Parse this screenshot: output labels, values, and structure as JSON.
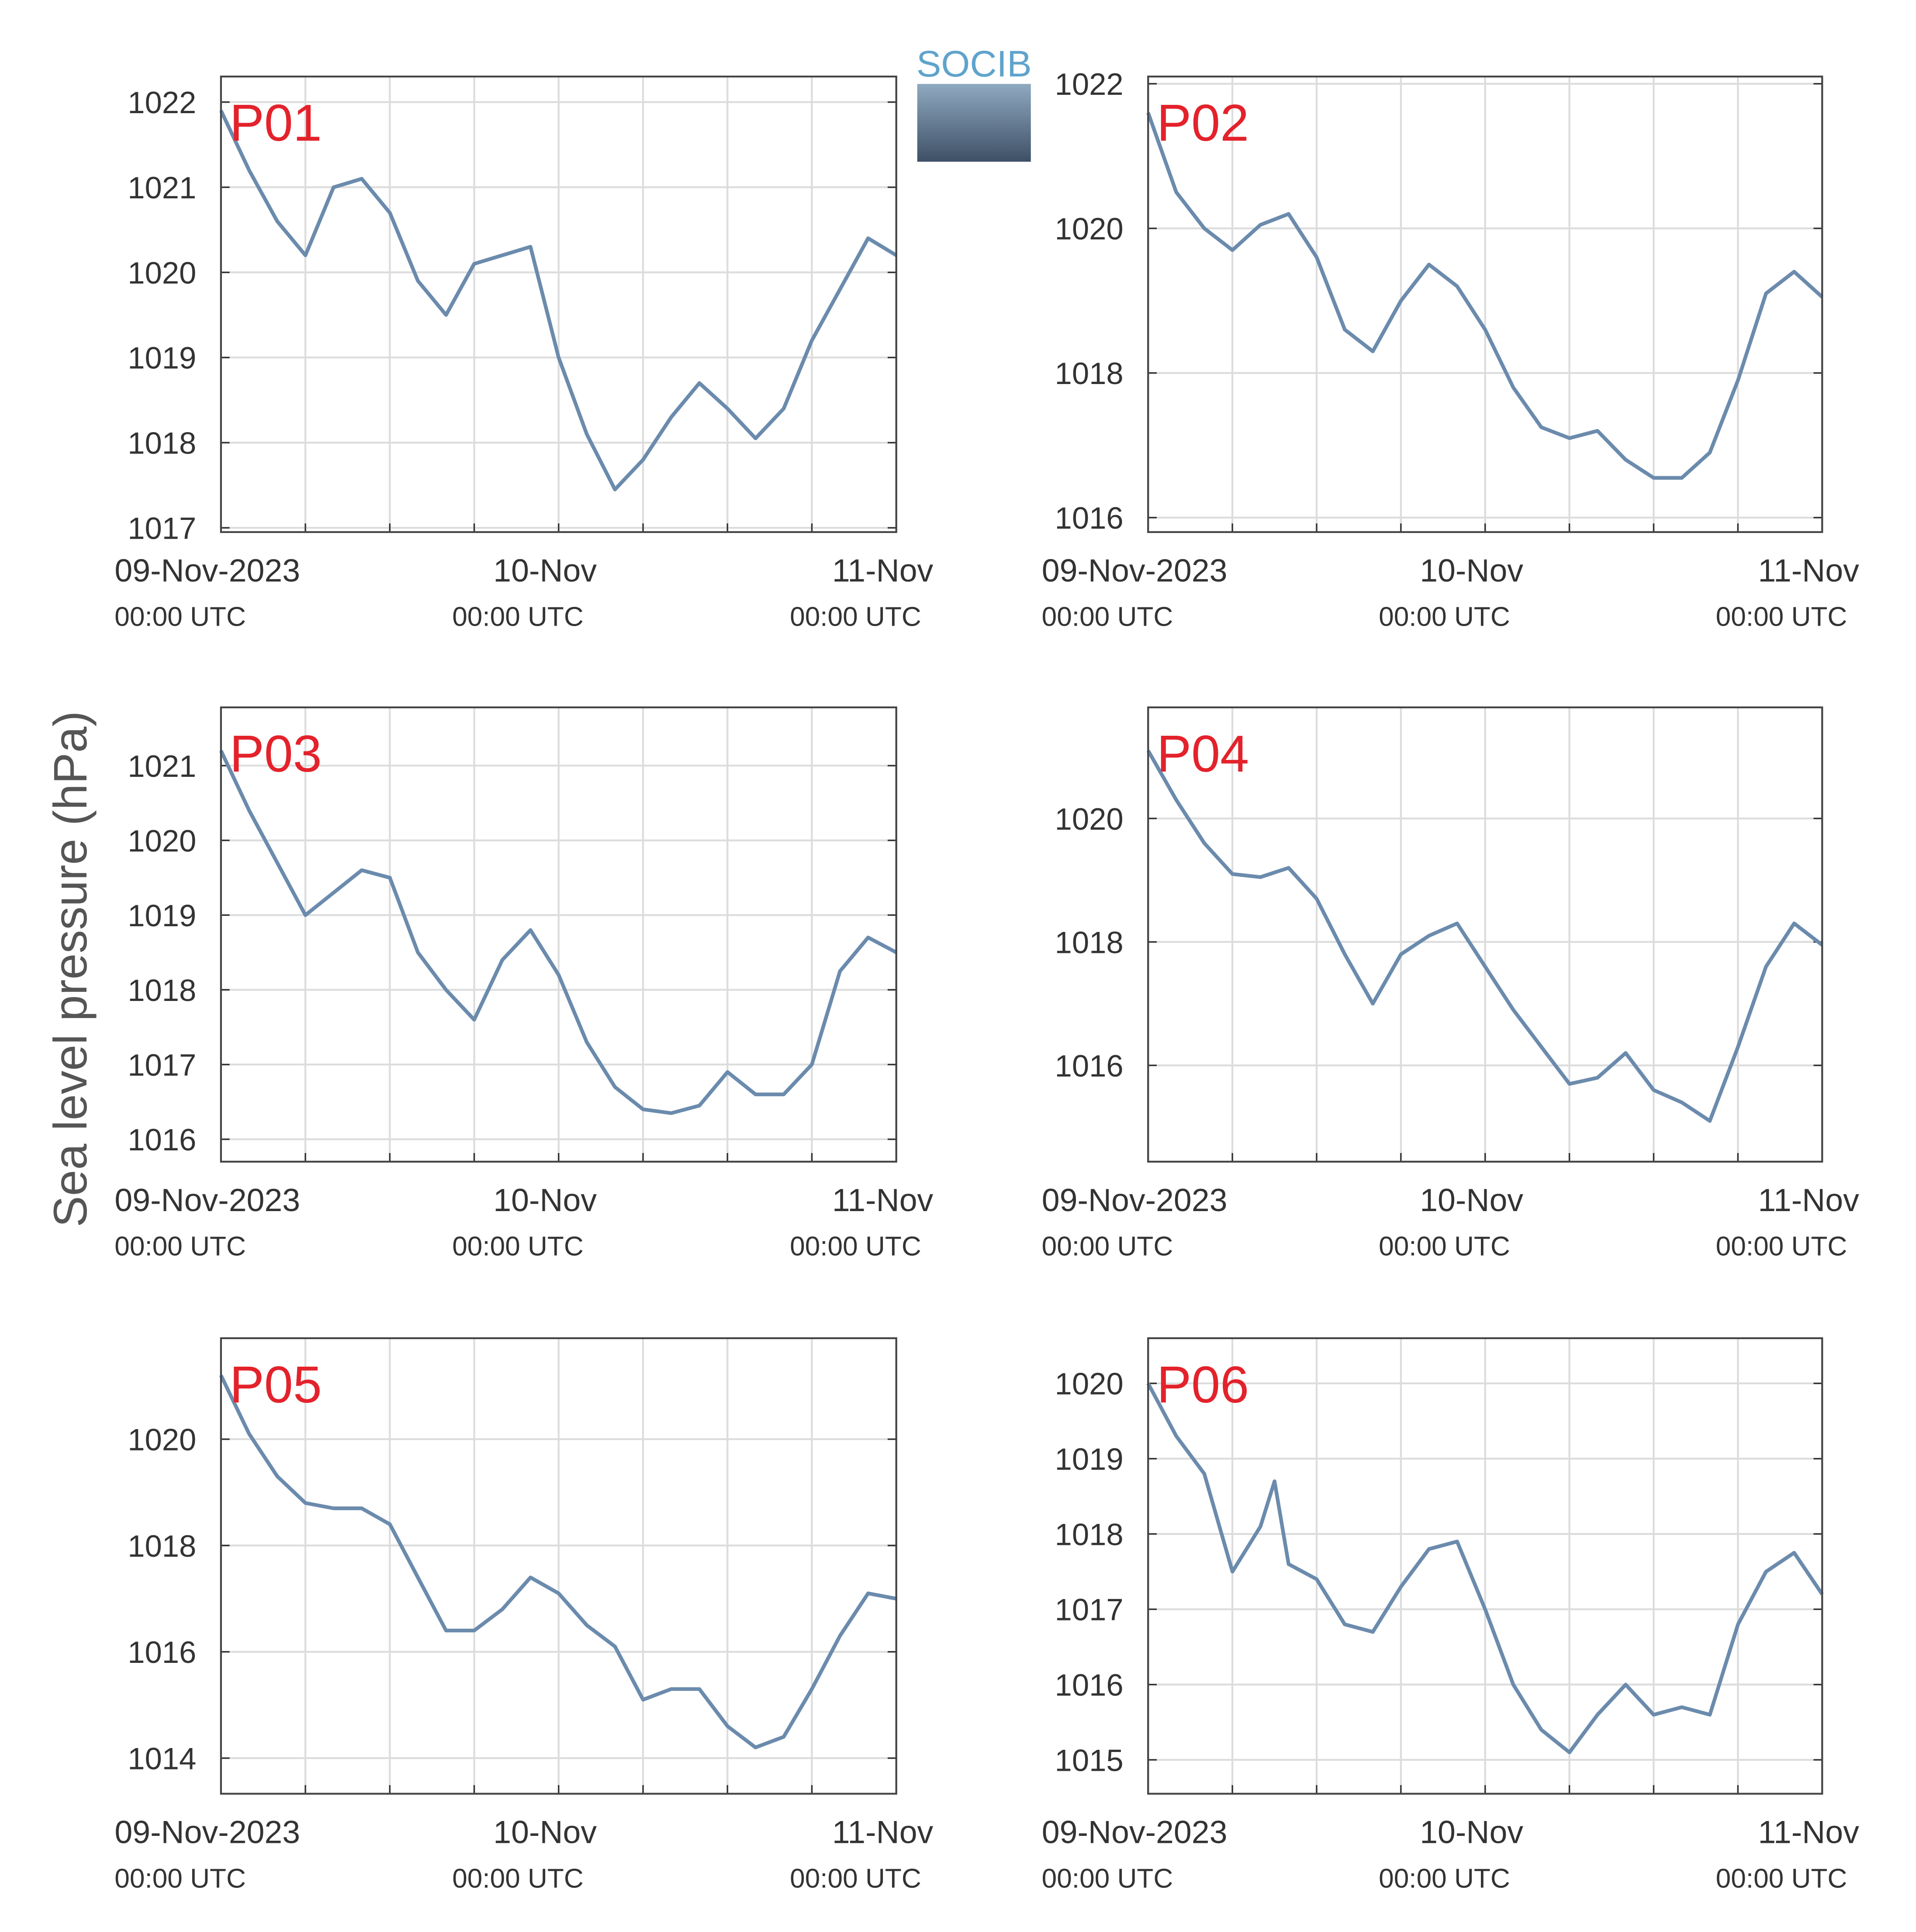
{
  "ylabel": "Sea level pressure (hPa)",
  "logo": "SOCIB",
  "chart_data": [
    {
      "type": "line",
      "title": "P01",
      "color": "#6b8bad",
      "grid": true,
      "x": [
        0,
        2,
        4,
        6,
        8,
        10,
        12,
        14,
        16,
        18,
        20,
        22,
        24,
        26,
        28,
        30,
        32,
        34,
        36,
        38,
        40,
        42,
        44,
        46,
        48
      ],
      "values": [
        1021.9,
        1021.2,
        1020.6,
        1020.2,
        1021.0,
        1021.1,
        1020.7,
        1019.9,
        1019.5,
        1020.1,
        1020.2,
        1020.3,
        1019.0,
        1018.1,
        1017.45,
        1017.8,
        1018.3,
        1018.7,
        1018.4,
        1018.05,
        1018.4,
        1019.2,
        1019.8,
        1020.4,
        1020.2
      ],
      "xlim": [
        0,
        48
      ],
      "xticks": [
        {
          "value": 0,
          "label": "09-Nov-2023"
        },
        {
          "value": 24,
          "label": "10-Nov"
        },
        {
          "value": 48,
          "label": "11-Nov"
        }
      ],
      "xgrid": [
        6,
        12,
        18,
        30,
        36,
        42
      ],
      "xtick_sublabel": "00:00 UTC",
      "ylim": [
        1016.95,
        1022.3
      ],
      "yticks": [
        1017,
        1018,
        1019,
        1020,
        1021,
        1022
      ]
    },
    {
      "type": "line",
      "title": "P02",
      "color": "#6b8bad",
      "grid": true,
      "x": [
        0,
        2,
        4,
        6,
        8,
        10,
        12,
        14,
        16,
        18,
        20,
        22,
        24,
        26,
        28,
        30,
        32,
        34,
        36,
        38,
        40,
        42,
        44,
        46,
        48
      ],
      "values": [
        1021.6,
        1020.5,
        1020.0,
        1019.7,
        1020.05,
        1020.2,
        1019.6,
        1018.6,
        1018.3,
        1019.0,
        1019.5,
        1019.2,
        1018.6,
        1017.8,
        1017.25,
        1017.1,
        1017.2,
        1016.8,
        1016.55,
        1016.55,
        1016.9,
        1017.9,
        1019.1,
        1019.4,
        1019.05
      ],
      "xlim": [
        0,
        48
      ],
      "xticks": [
        {
          "value": 0,
          "label": "09-Nov-2023"
        },
        {
          "value": 24,
          "label": "10-Nov"
        },
        {
          "value": 48,
          "label": "11-Nov"
        }
      ],
      "xgrid": [
        6,
        12,
        18,
        30,
        36,
        42
      ],
      "xtick_sublabel": "00:00 UTC",
      "ylim": [
        1015.8,
        1022.1
      ],
      "yticks": [
        1016,
        1018,
        1020,
        1022
      ]
    },
    {
      "type": "line",
      "title": "P03",
      "color": "#6b8bad",
      "grid": true,
      "x": [
        0,
        2,
        4,
        6,
        8,
        10,
        12,
        14,
        16,
        18,
        20,
        22,
        24,
        26,
        28,
        30,
        32,
        34,
        36,
        38,
        40,
        42,
        44,
        46,
        48
      ],
      "values": [
        1021.2,
        1020.4,
        1019.7,
        1019.0,
        1019.3,
        1019.6,
        1019.5,
        1018.5,
        1018.0,
        1017.6,
        1018.4,
        1018.8,
        1018.2,
        1017.3,
        1016.7,
        1016.4,
        1016.35,
        1016.45,
        1016.9,
        1016.6,
        1016.6,
        1017.0,
        1018.25,
        1018.7,
        1018.5
      ],
      "xlim": [
        0,
        48
      ],
      "xticks": [
        {
          "value": 0,
          "label": "09-Nov-2023"
        },
        {
          "value": 24,
          "label": "10-Nov"
        },
        {
          "value": 48,
          "label": "11-Nov"
        }
      ],
      "xgrid": [
        6,
        12,
        18,
        30,
        36,
        42
      ],
      "xtick_sublabel": "00:00 UTC",
      "ylim": [
        1015.7,
        1021.78
      ],
      "yticks": [
        1016,
        1017,
        1018,
        1019,
        1020,
        1021
      ]
    },
    {
      "type": "line",
      "title": "P04",
      "color": "#6b8bad",
      "grid": true,
      "x": [
        0,
        2,
        4,
        6,
        8,
        10,
        12,
        14,
        16,
        18,
        20,
        22,
        24,
        26,
        28,
        30,
        32,
        34,
        36,
        38,
        40,
        42,
        44,
        46,
        48
      ],
      "values": [
        1021.1,
        1020.3,
        1019.6,
        1019.1,
        1019.05,
        1019.2,
        1018.7,
        1017.8,
        1017.0,
        1017.8,
        1018.1,
        1018.3,
        1017.6,
        1016.9,
        1016.3,
        1015.7,
        1015.8,
        1016.2,
        1015.6,
        1015.4,
        1015.1,
        1016.3,
        1017.6,
        1018.3,
        1017.95
      ],
      "xlim": [
        0,
        48
      ],
      "xticks": [
        {
          "value": 0,
          "label": "09-Nov-2023"
        },
        {
          "value": 24,
          "label": "10-Nov"
        },
        {
          "value": 48,
          "label": "11-Nov"
        }
      ],
      "xgrid": [
        6,
        12,
        18,
        30,
        36,
        42
      ],
      "xtick_sublabel": "00:00 UTC",
      "ylim": [
        1014.44,
        1021.8
      ],
      "yticks": [
        1016,
        1018,
        1020
      ]
    },
    {
      "type": "line",
      "title": "P05",
      "color": "#6b8bad",
      "grid": true,
      "x": [
        0,
        2,
        4,
        6,
        8,
        10,
        12,
        14,
        16,
        18,
        20,
        22,
        24,
        26,
        28,
        30,
        32,
        34,
        36,
        38,
        40,
        42,
        44,
        46,
        48
      ],
      "values": [
        1021.2,
        1020.1,
        1019.3,
        1018.8,
        1018.7,
        1018.7,
        1018.4,
        1017.4,
        1016.4,
        1016.4,
        1016.8,
        1017.4,
        1017.1,
        1016.5,
        1016.1,
        1015.1,
        1015.3,
        1015.3,
        1014.6,
        1014.2,
        1014.4,
        1015.3,
        1016.3,
        1017.1,
        1017.0
      ],
      "xlim": [
        0,
        48
      ],
      "xticks": [
        {
          "value": 0,
          "label": "09-Nov-2023"
        },
        {
          "value": 24,
          "label": "10-Nov"
        },
        {
          "value": 48,
          "label": "11-Nov"
        }
      ],
      "xgrid": [
        6,
        12,
        18,
        30,
        36,
        42
      ],
      "xtick_sublabel": "00:00 UTC",
      "ylim": [
        1013.33,
        1021.9
      ],
      "yticks": [
        1014,
        1016,
        1018,
        1020
      ]
    },
    {
      "type": "line",
      "title": "P06",
      "color": "#6b8bad",
      "grid": true,
      "x": [
        0,
        2,
        4,
        6,
        8,
        9,
        10,
        12,
        14,
        16,
        18,
        20,
        22,
        24,
        26,
        28,
        30,
        32,
        34,
        36,
        38,
        40,
        42,
        44,
        46,
        48
      ],
      "values": [
        1020.0,
        1019.3,
        1018.8,
        1017.5,
        1018.1,
        1018.7,
        1017.6,
        1017.4,
        1016.8,
        1016.7,
        1017.3,
        1017.8,
        1017.9,
        1017.0,
        1016.0,
        1015.4,
        1015.1,
        1015.6,
        1016.0,
        1015.6,
        1015.7,
        1015.6,
        1016.8,
        1017.5,
        1017.75,
        1017.2
      ],
      "xlim": [
        0,
        48
      ],
      "xticks": [
        {
          "value": 0,
          "label": "09-Nov-2023"
        },
        {
          "value": 24,
          "label": "10-Nov"
        },
        {
          "value": 48,
          "label": "11-Nov"
        }
      ],
      "xgrid": [
        6,
        12,
        18,
        30,
        36,
        42
      ],
      "xtick_sublabel": "00:00 UTC",
      "ylim": [
        1014.55,
        1020.6
      ],
      "yticks": [
        1015,
        1016,
        1017,
        1018,
        1019,
        1020
      ]
    }
  ]
}
